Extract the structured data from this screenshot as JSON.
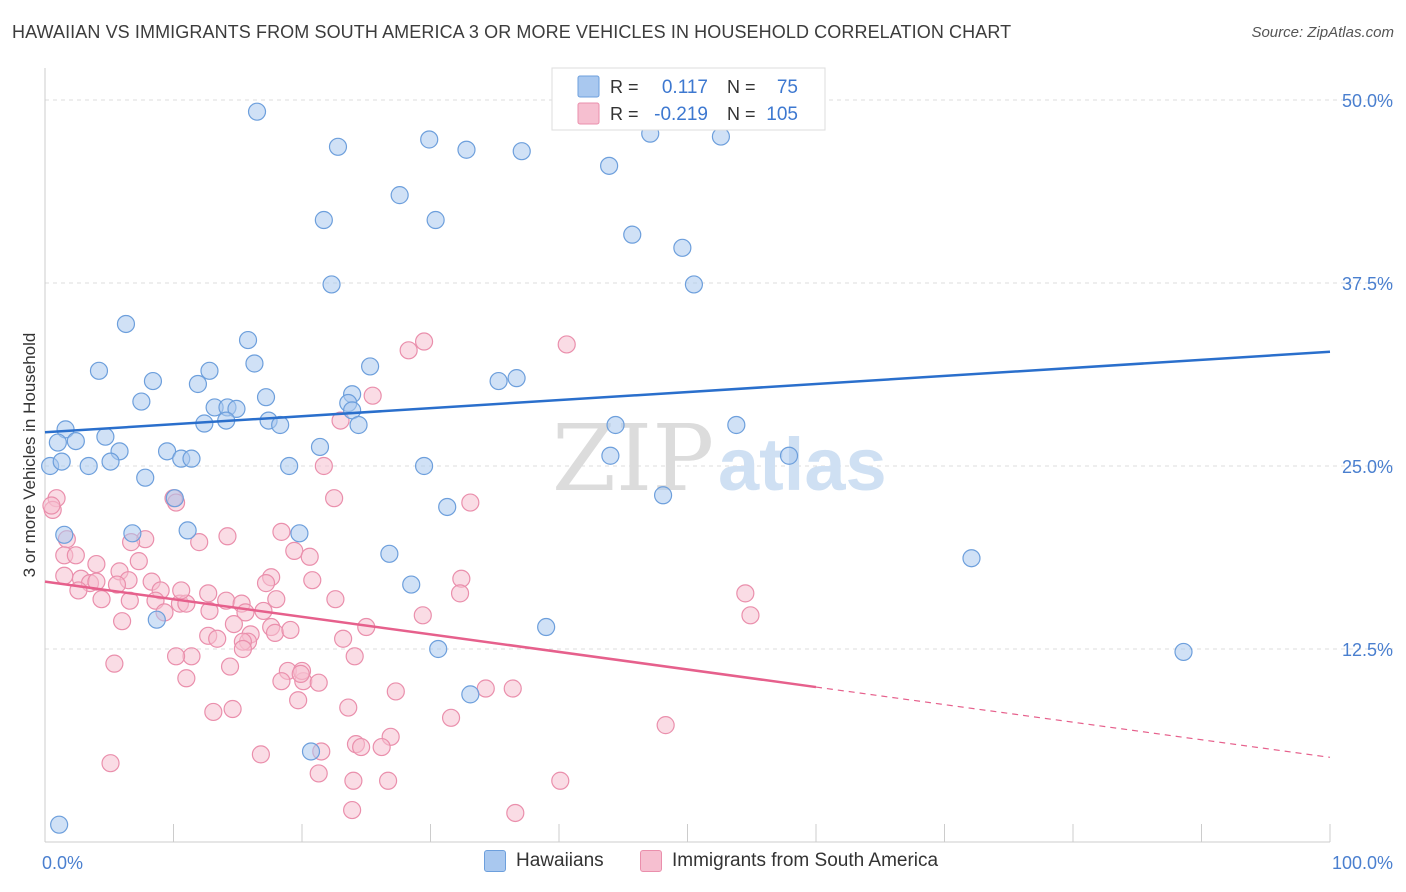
{
  "title": "HAWAIIAN VS IMMIGRANTS FROM SOUTH AMERICA 3 OR MORE VEHICLES IN HOUSEHOLD CORRELATION CHART",
  "source": "Source: ZipAtlas.com",
  "watermark": {
    "zip": "ZIP",
    "atlas": "atlas"
  },
  "legend_top": {
    "rows": [
      {
        "r_label": "R =",
        "r_value": "0.117",
        "n_label": "N =",
        "n_value": "75"
      },
      {
        "r_label": "R =",
        "r_value": "-0.219",
        "n_label": "N =",
        "n_value": "105"
      }
    ]
  },
  "legend_bottom": {
    "items": [
      "Hawaiians",
      "Immigrants from South America"
    ]
  },
  "colors": {
    "blue_fill": "#a9c8ef",
    "blue_stroke": "#6d9fdc",
    "blue_line": "#2a6fcc",
    "pink_fill": "#f6bfd0",
    "pink_stroke": "#ea8fac",
    "pink_line": "#e6608c",
    "tick_label": "#4a7fcf",
    "grid": "#dddddd"
  },
  "chart_data": {
    "type": "scatter",
    "title": "HAWAIIAN VS IMMIGRANTS FROM SOUTH AMERICA 3 OR MORE VEHICLES IN HOUSEHOLD CORRELATION CHART",
    "xlabel": "",
    "ylabel": "3 or more Vehicles in Household",
    "xlim": [
      0,
      100
    ],
    "ylim": [
      0,
      51.5
    ],
    "x_tick_labels": [
      "0.0%",
      "100.0%"
    ],
    "y_ticks": [
      12.5,
      25.0,
      37.5,
      50.0
    ],
    "y_tick_labels": [
      "12.5%",
      "25.0%",
      "37.5%",
      "50.0%"
    ],
    "grid": true,
    "legend_placement": "top-center",
    "series": [
      {
        "name": "Hawaiians",
        "R": 0.117,
        "N": 75,
        "trend": {
          "x": [
            0,
            100
          ],
          "y": [
            27.3,
            32.8
          ],
          "dashed_from": null
        },
        "points": [
          [
            16.5,
            49.2
          ],
          [
            22.8,
            46.8
          ],
          [
            32.8,
            46.6
          ],
          [
            27.6,
            43.5
          ],
          [
            21.7,
            41.8
          ],
          [
            30.4,
            41.8
          ],
          [
            45.7,
            40.8
          ],
          [
            49.6,
            39.9
          ],
          [
            50.5,
            37.4
          ],
          [
            22.3,
            37.4
          ],
          [
            6.3,
            34.7
          ],
          [
            15.8,
            33.6
          ],
          [
            16.3,
            32.0
          ],
          [
            25.3,
            31.8
          ],
          [
            4.2,
            31.5
          ],
          [
            12.8,
            31.5
          ],
          [
            8.4,
            30.8
          ],
          [
            11.9,
            30.6
          ],
          [
            35.3,
            30.8
          ],
          [
            36.7,
            31.0
          ],
          [
            17.2,
            29.7
          ],
          [
            23.9,
            29.9
          ],
          [
            7.5,
            29.4
          ],
          [
            13.2,
            29.0
          ],
          [
            14.2,
            29.0
          ],
          [
            14.9,
            28.9
          ],
          [
            23.6,
            29.3
          ],
          [
            23.9,
            28.8
          ],
          [
            12.4,
            27.9
          ],
          [
            14.1,
            28.1
          ],
          [
            17.4,
            28.1
          ],
          [
            18.3,
            27.8
          ],
          [
            24.4,
            27.8
          ],
          [
            44.4,
            27.8
          ],
          [
            53.8,
            27.8
          ],
          [
            1.6,
            27.5
          ],
          [
            2.4,
            26.7
          ],
          [
            1.0,
            26.6
          ],
          [
            4.7,
            27.0
          ],
          [
            5.8,
            26.0
          ],
          [
            9.5,
            26.0
          ],
          [
            21.4,
            26.3
          ],
          [
            0.4,
            25.0
          ],
          [
            1.3,
            25.3
          ],
          [
            3.4,
            25.0
          ],
          [
            5.1,
            25.3
          ],
          [
            10.6,
            25.5
          ],
          [
            11.4,
            25.5
          ],
          [
            19.0,
            25.0
          ],
          [
            29.5,
            25.0
          ],
          [
            7.8,
            24.2
          ],
          [
            44.0,
            25.7
          ],
          [
            57.9,
            25.7
          ],
          [
            10.1,
            22.8
          ],
          [
            31.3,
            22.2
          ],
          [
            48.1,
            23.0
          ],
          [
            1.5,
            20.3
          ],
          [
            6.8,
            20.4
          ],
          [
            11.1,
            20.6
          ],
          [
            19.8,
            20.4
          ],
          [
            26.8,
            19.0
          ],
          [
            72.1,
            18.7
          ],
          [
            28.5,
            16.9
          ],
          [
            8.7,
            14.5
          ],
          [
            39.0,
            14.0
          ],
          [
            30.6,
            12.5
          ],
          [
            88.6,
            12.3
          ],
          [
            33.1,
            9.4
          ],
          [
            20.7,
            5.5
          ],
          [
            1.1,
            0.5
          ],
          [
            47.1,
            47.7
          ],
          [
            52.6,
            47.5
          ],
          [
            29.9,
            47.3
          ],
          [
            37.1,
            46.5
          ],
          [
            43.9,
            45.5
          ]
        ]
      },
      {
        "name": "Immigrants from South America",
        "R": -0.219,
        "N": 105,
        "trend": {
          "x": [
            0,
            100
          ],
          "y": [
            17.1,
            5.1
          ],
          "dashed_from": 60
        },
        "points": [
          [
            29.5,
            33.5
          ],
          [
            28.3,
            32.9
          ],
          [
            40.6,
            33.3
          ],
          [
            25.5,
            29.8
          ],
          [
            23.0,
            28.1
          ],
          [
            21.7,
            25.0
          ],
          [
            0.9,
            22.8
          ],
          [
            0.6,
            22.0
          ],
          [
            22.5,
            22.8
          ],
          [
            33.1,
            22.5
          ],
          [
            10.0,
            22.8
          ],
          [
            10.2,
            22.5
          ],
          [
            18.4,
            20.5
          ],
          [
            14.2,
            20.2
          ],
          [
            1.7,
            20.0
          ],
          [
            7.8,
            20.0
          ],
          [
            6.7,
            19.8
          ],
          [
            12.0,
            19.8
          ],
          [
            1.5,
            18.9
          ],
          [
            2.4,
            18.9
          ],
          [
            4.0,
            18.3
          ],
          [
            7.3,
            18.5
          ],
          [
            19.4,
            19.2
          ],
          [
            20.6,
            18.8
          ],
          [
            5.8,
            17.8
          ],
          [
            1.5,
            17.5
          ],
          [
            2.8,
            17.3
          ],
          [
            3.5,
            17.0
          ],
          [
            4.0,
            17.1
          ],
          [
            6.5,
            17.2
          ],
          [
            8.3,
            17.1
          ],
          [
            17.6,
            17.4
          ],
          [
            20.8,
            17.2
          ],
          [
            32.4,
            17.3
          ],
          [
            17.2,
            17.0
          ],
          [
            2.6,
            16.5
          ],
          [
            9.0,
            16.5
          ],
          [
            12.7,
            16.3
          ],
          [
            32.3,
            16.3
          ],
          [
            54.5,
            16.3
          ],
          [
            4.4,
            15.9
          ],
          [
            6.6,
            15.8
          ],
          [
            8.6,
            15.8
          ],
          [
            10.5,
            15.6
          ],
          [
            11.0,
            15.6
          ],
          [
            14.1,
            15.8
          ],
          [
            15.3,
            15.6
          ],
          [
            18.0,
            15.9
          ],
          [
            22.6,
            15.9
          ],
          [
            9.3,
            15.0
          ],
          [
            12.8,
            15.1
          ],
          [
            15.6,
            15.0
          ],
          [
            17.0,
            15.1
          ],
          [
            29.4,
            14.8
          ],
          [
            54.9,
            14.8
          ],
          [
            6.0,
            14.4
          ],
          [
            14.7,
            14.2
          ],
          [
            17.6,
            14.0
          ],
          [
            25.0,
            14.0
          ],
          [
            16.0,
            13.5
          ],
          [
            12.7,
            13.4
          ],
          [
            13.4,
            13.2
          ],
          [
            15.8,
            13.0
          ],
          [
            15.4,
            13.0
          ],
          [
            17.9,
            13.6
          ],
          [
            19.1,
            13.8
          ],
          [
            23.2,
            13.2
          ],
          [
            11.4,
            12.0
          ],
          [
            10.2,
            12.0
          ],
          [
            15.4,
            12.5
          ],
          [
            24.1,
            12.0
          ],
          [
            5.4,
            11.5
          ],
          [
            14.4,
            11.3
          ],
          [
            18.9,
            11.0
          ],
          [
            11.0,
            10.5
          ],
          [
            18.4,
            10.3
          ],
          [
            20.1,
            10.3
          ],
          [
            20.0,
            11.0
          ],
          [
            21.3,
            10.2
          ],
          [
            27.3,
            9.6
          ],
          [
            34.3,
            9.8
          ],
          [
            36.4,
            9.8
          ],
          [
            19.7,
            9.0
          ],
          [
            23.6,
            8.5
          ],
          [
            14.6,
            8.4
          ],
          [
            13.1,
            8.2
          ],
          [
            31.6,
            7.8
          ],
          [
            48.3,
            7.3
          ],
          [
            26.9,
            6.5
          ],
          [
            24.2,
            6.0
          ],
          [
            24.6,
            5.8
          ],
          [
            26.2,
            5.8
          ],
          [
            21.5,
            5.5
          ],
          [
            16.8,
            5.3
          ],
          [
            5.1,
            4.7
          ],
          [
            21.3,
            4.0
          ],
          [
            40.1,
            3.5
          ],
          [
            24.0,
            3.5
          ],
          [
            26.7,
            3.5
          ],
          [
            36.6,
            1.3
          ],
          [
            23.9,
            1.5
          ],
          [
            0.5,
            22.3
          ],
          [
            19.9,
            10.8
          ],
          [
            5.6,
            16.9
          ],
          [
            10.6,
            16.5
          ]
        ]
      }
    ]
  }
}
